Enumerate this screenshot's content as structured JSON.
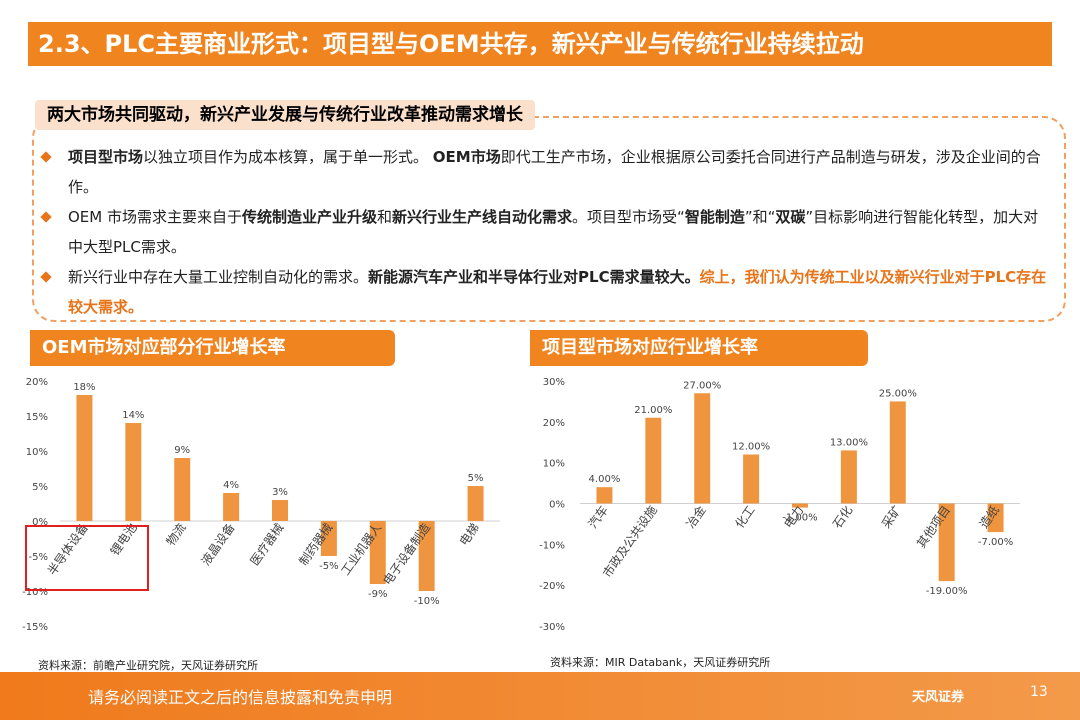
{
  "header": {
    "title": "2.3、PLC主要商业形式：项目型与OEM共存，新兴产业与传统行业持续拉动"
  },
  "summary": {
    "title": "两大市场共同驱动，新兴产业发展与传统行业改革推动需求增长",
    "bullets": [
      [
        {
          "text": "项目型市场",
          "style": "bold"
        },
        {
          "text": "以独立项目作为成本核算，属于单一形式。 ",
          "style": "normal"
        },
        {
          "text": "OEM市场",
          "style": "bold"
        },
        {
          "text": "即代工生产市场，企业根据原公司委托合同进行产品制造与研发，涉及企业间的合作。",
          "style": "normal"
        }
      ],
      [
        {
          "text": "OEM 市场需求主要来自于",
          "style": "normal"
        },
        {
          "text": "传统制造业产业升级",
          "style": "bold"
        },
        {
          "text": "和",
          "style": "normal"
        },
        {
          "text": "新兴行业生产线自动化需求",
          "style": "bold"
        },
        {
          "text": "。项目型市场受“",
          "style": "normal"
        },
        {
          "text": "智能制造",
          "style": "bold"
        },
        {
          "text": "”和“",
          "style": "normal"
        },
        {
          "text": "双碳",
          "style": "bold"
        },
        {
          "text": "”目标影响进行智能化转型，加大对中大型PLC需求。",
          "style": "normal"
        }
      ],
      [
        {
          "text": "新兴行业中存在大量工业控制自动化的需求。",
          "style": "normal"
        },
        {
          "text": "新能源汽车产业和半导体行业对PLC需求量较大。",
          "style": "bold"
        },
        {
          "text": "综上，我们认为传统工业以及新兴行业对于PLC存在较大需求。",
          "style": "highlight"
        }
      ]
    ]
  },
  "chart_data": [
    {
      "type": "bar",
      "title": "OEM市场对应部分行业增长率",
      "color": "#f0953f",
      "categories": [
        "半导体设备",
        "锂电池",
        "物流",
        "液晶设备",
        "医疗器械",
        "制药器械",
        "工业机器人",
        "电子设备制造",
        "电梯"
      ],
      "values": [
        18,
        14,
        9,
        4,
        3,
        -5,
        -9,
        -10,
        5
      ],
      "value_labels": [
        "18%",
        "14%",
        "9%",
        "4%",
        "3%",
        "-5%",
        "-9%",
        "-10%",
        "5%"
      ],
      "ylim": [
        -15,
        20
      ],
      "yticks": [
        {
          "value": -15,
          "label": "-15%"
        },
        {
          "value": -10,
          "label": "-10%"
        },
        {
          "value": -5,
          "label": "-5%"
        },
        {
          "value": 0,
          "label": "0%"
        },
        {
          "value": 5,
          "label": "5%"
        },
        {
          "value": 10,
          "label": "10%"
        },
        {
          "value": 15,
          "label": "15%"
        },
        {
          "value": 20,
          "label": "20%"
        }
      ],
      "source": "资料来源：前瞻产业研究院，天风证券研究所"
    },
    {
      "type": "bar",
      "title": "项目型市场对应行业增长率",
      "color": "#f0953f",
      "categories": [
        "汽车",
        "市政及公共设施",
        "冶金",
        "化工",
        "电力",
        "石化",
        "采矿",
        "其他项目",
        "造纸"
      ],
      "values": [
        4,
        21,
        27,
        12,
        -1,
        13,
        25,
        -19,
        -7
      ],
      "value_labels": [
        "4.00%",
        "21.00%",
        "27.00%",
        "12.00%",
        "-1.00%",
        "13.00%",
        "25.00%",
        "-19.00%",
        "-7.00%"
      ],
      "ylim": [
        -30,
        30
      ],
      "yticks": [
        {
          "value": -30,
          "label": "-30%"
        },
        {
          "value": -20,
          "label": "-20%"
        },
        {
          "value": -10,
          "label": "-10%"
        },
        {
          "value": 0,
          "label": "0%"
        },
        {
          "value": 10,
          "label": "10%"
        },
        {
          "value": 20,
          "label": "20%"
        },
        {
          "value": 30,
          "label": "30%"
        }
      ],
      "source": "资料来源：MIR Databank，天风证券研究所"
    }
  ],
  "footer": {
    "disclaimer": "请务必阅读正文之后的信息披露和免责申明",
    "page": "13",
    "logo": "天风证券"
  }
}
